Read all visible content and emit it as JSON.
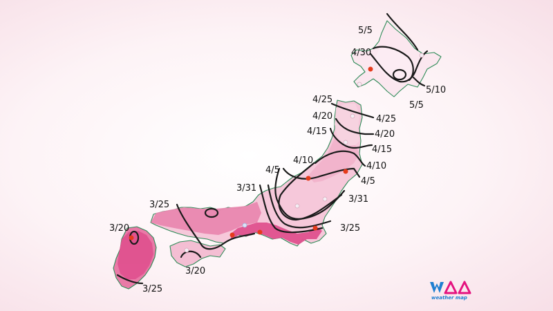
{
  "map": {
    "date_labels": {
      "hokkaido_north": "5/5",
      "hokkaido_west": "4/30",
      "hokkaido_east_a": "5/10",
      "hokkaido_east_b": "5/5",
      "tohoku_w_425": "4/25",
      "tohoku_w_420": "4/20",
      "tohoku_w_415": "4/15",
      "tohoku_e_425": "4/25",
      "tohoku_e_420": "4/20",
      "tohoku_e_415": "4/15",
      "tohoku_e_410": "4/10",
      "kanto_e_45": "4/5",
      "kanto_e_331": "3/31",
      "kanto_e_325": "3/25",
      "chubu_410": "4/10",
      "chubu_45": "4/5",
      "chubu_331": "3/31",
      "chugoku_325": "3/25",
      "kyushu_320": "3/20",
      "shikoku_320": "3/20",
      "kyushu_325": "3/25"
    },
    "colors": {
      "earliest": "#e0528f",
      "early": "#ea88b0",
      "mid": "#f2b3cc",
      "late": "#f8d4e1",
      "latest": "#fcecf2",
      "coast": "#2e8b57",
      "city_dot_red": "#e53b1c",
      "city_dot_white": "#f4eef4",
      "isoline": "#1a1a1a"
    }
  },
  "logo": {
    "text": "weather map",
    "icon": "weathermap-logo-icon"
  }
}
